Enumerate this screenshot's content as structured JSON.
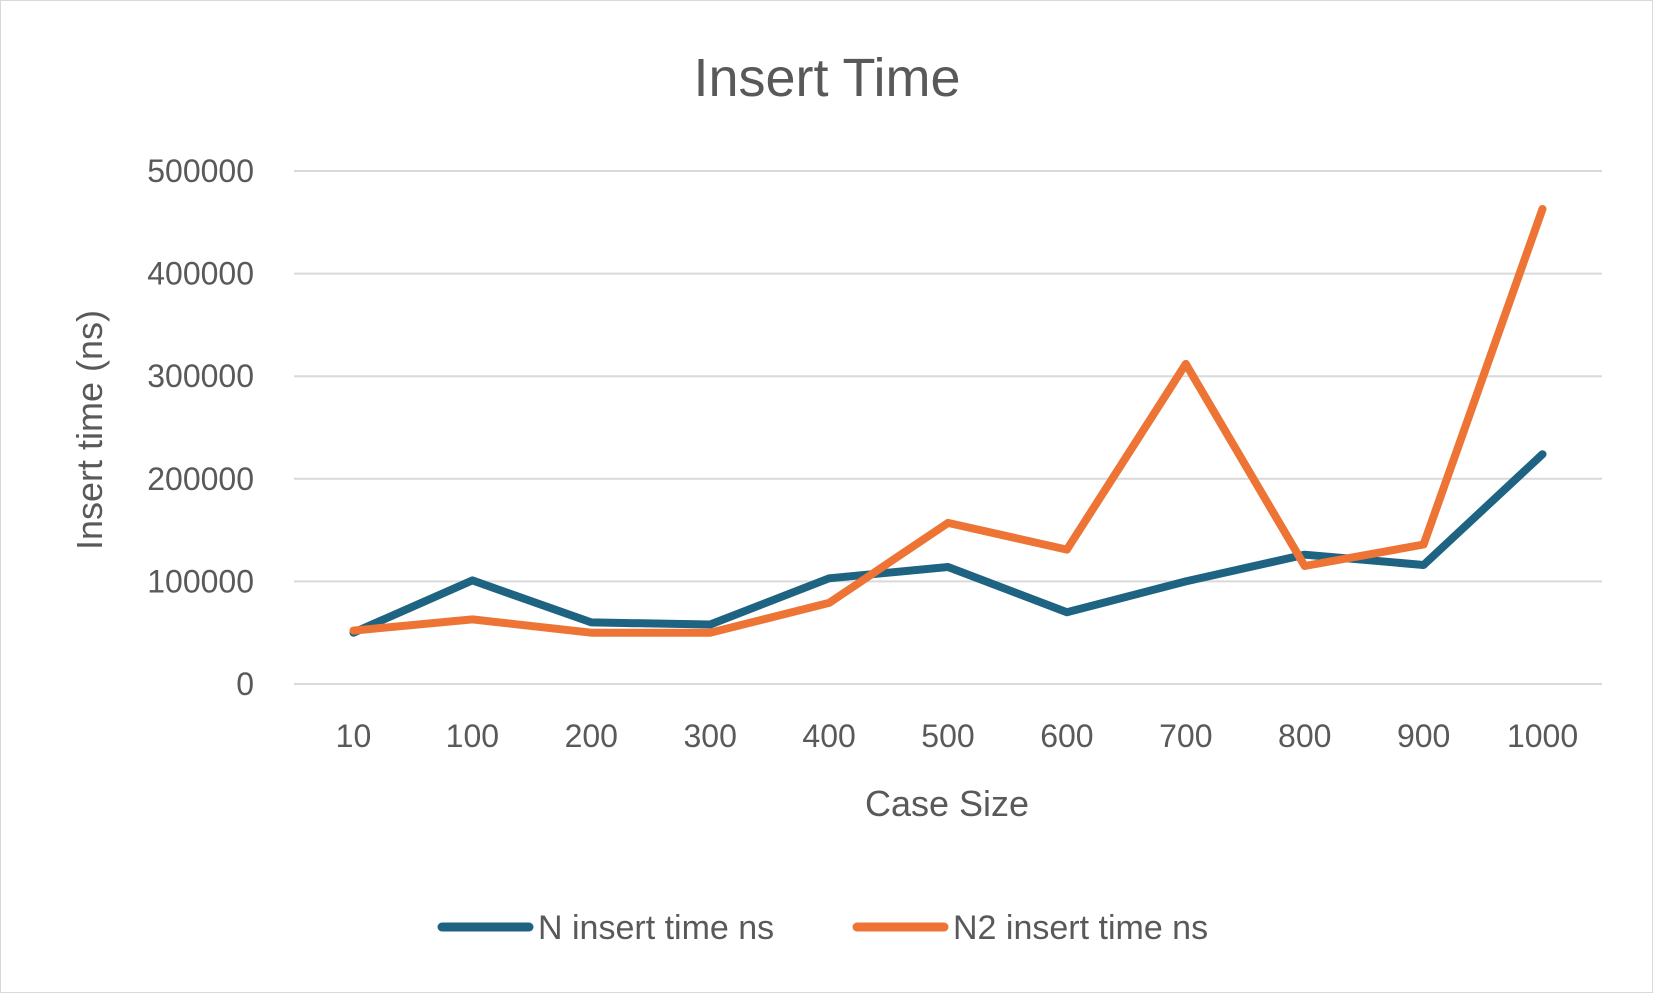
{
  "chart_data": {
    "type": "line",
    "title": "Insert Time",
    "xlabel": "Case Size",
    "ylabel": "Insert time (ns)",
    "categories": [
      "10",
      "100",
      "200",
      "300",
      "400",
      "500",
      "600",
      "700",
      "800",
      "900",
      "1000"
    ],
    "y_ticks": [
      "0",
      "100000",
      "200000",
      "300000",
      "400000",
      "500000"
    ],
    "ylim": [
      0,
      500000
    ],
    "grid": true,
    "legend_position": "bottom",
    "series": [
      {
        "name": "N insert time ns",
        "color": "#1f6382",
        "values": [
          50000,
          101000,
          60000,
          58000,
          103000,
          114000,
          70000,
          100000,
          126000,
          116000,
          224000
        ]
      },
      {
        "name": "N2 insert time ns",
        "color": "#ed7434",
        "values": [
          52000,
          63000,
          50000,
          50000,
          79000,
          157000,
          131000,
          312000,
          115000,
          136000,
          463000
        ]
      }
    ]
  }
}
